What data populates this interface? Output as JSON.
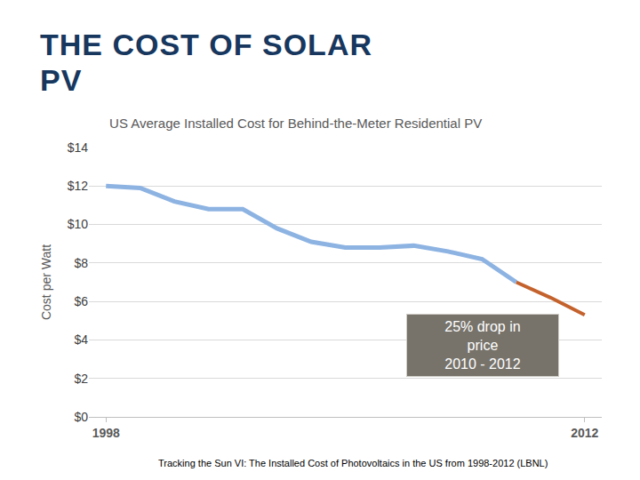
{
  "slide_title": [
    "THE COST OF SOLAR",
    "PV"
  ],
  "source": "Tracking the Sun VI: The Installed Cost of Photovoltaics in the US from 1998-2012 (LBNL)",
  "chart_data": {
    "type": "line",
    "title": "US Average Installed Cost for Behind-the-Meter Residential PV",
    "y_label": "Cost per Watt",
    "x": [
      1998,
      1999,
      2000,
      2001,
      2002,
      2003,
      2004,
      2005,
      2006,
      2007,
      2008,
      2009,
      2010,
      2011,
      2012
    ],
    "series": [
      {
        "color": "#8db3e2",
        "values": [
          12.0,
          11.9,
          11.2,
          10.8,
          10.8,
          9.8,
          9.1,
          8.8,
          8.8,
          8.9,
          8.6,
          8.2,
          7.0,
          null,
          null
        ]
      },
      {
        "color": "#c4622d",
        "values": [
          null,
          null,
          null,
          null,
          null,
          null,
          null,
          null,
          null,
          null,
          null,
          null,
          7.0,
          6.2,
          5.3
        ]
      }
    ],
    "xlim": [
      1997.5,
      2012.5
    ],
    "xticks": [
      1998,
      2012
    ],
    "ylim": [
      0,
      14
    ],
    "yticks": [
      {
        "value": 0,
        "label": "$0"
      },
      {
        "value": 2,
        "label": "$2"
      },
      {
        "value": 4,
        "label": "$4"
      },
      {
        "value": 6,
        "label": "$6"
      },
      {
        "value": 8,
        "label": "$8"
      },
      {
        "value": 10,
        "label": "$10"
      },
      {
        "value": 12,
        "label": "$12"
      },
      {
        "value": 14,
        "label": "$14"
      }
    ],
    "grid": true,
    "annotation": {
      "lines": [
        "25% drop in",
        "price",
        "2010 - 2012"
      ]
    }
  }
}
